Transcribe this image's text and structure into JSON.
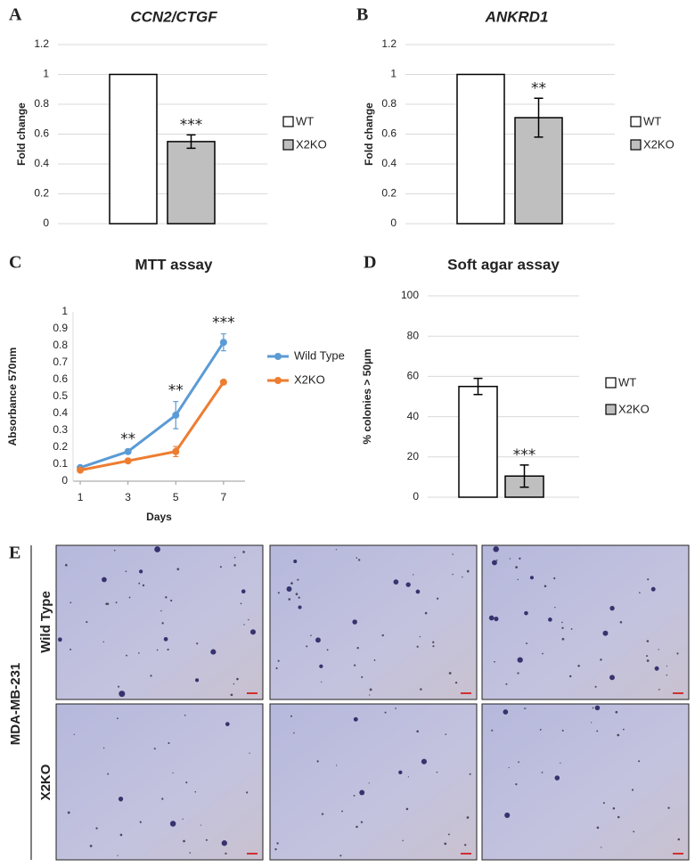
{
  "chart_data": [
    {
      "panel": "A",
      "type": "bar",
      "title": "CCN2/CTGF",
      "y_label": "Fold change",
      "categories": [
        "WT",
        "X2KO"
      ],
      "values": [
        1,
        0.55
      ],
      "errors": [
        null,
        0.045
      ],
      "colors": [
        "#ffffff",
        "#bfbfbf"
      ],
      "annotations": [
        null,
        "***"
      ],
      "ylim": [
        0,
        1.2
      ],
      "yticks": [
        0,
        0.2,
        0.4,
        0.6,
        0.8,
        1,
        1.2
      ],
      "grid": true,
      "title_italic": true
    },
    {
      "panel": "B",
      "type": "bar",
      "title": "ANKRD1",
      "y_label": "Fold change",
      "categories": [
        "WT",
        "X2KO"
      ],
      "values": [
        1,
        0.71
      ],
      "errors": [
        null,
        0.13
      ],
      "colors": [
        "#ffffff",
        "#bfbfbf"
      ],
      "annotations": [
        null,
        "**"
      ],
      "ylim": [
        0,
        1.2
      ],
      "yticks": [
        0,
        0.2,
        0.4,
        0.6,
        0.8,
        1,
        1.2
      ],
      "grid": true,
      "title_italic": true
    },
    {
      "panel": "C",
      "type": "line",
      "title": "MTT assay",
      "x_label": "Days",
      "y_label": "Absorbance 570nm",
      "x": [
        1,
        3,
        5,
        7
      ],
      "xlim": [
        0.7,
        7.9
      ],
      "xticks": [
        1,
        3,
        5,
        7
      ],
      "ylim": [
        0,
        1
      ],
      "yticks": [
        0,
        0.1,
        0.2,
        0.3,
        0.4,
        0.5,
        0.6,
        0.7,
        0.8,
        0.9,
        1
      ],
      "grid": false,
      "series": [
        {
          "name": "Wild Type",
          "color": "#5b9bd5",
          "values": [
            0.08,
            0.175,
            0.39,
            0.82
          ],
          "errors": [
            0.005,
            0.01,
            0.08,
            0.05
          ]
        },
        {
          "name": "X2KO",
          "color": "#ed7d31",
          "values": [
            0.065,
            0.12,
            0.175,
            0.585
          ],
          "errors": [
            0.005,
            0.01,
            0.03,
            0.01
          ]
        }
      ],
      "annotations": [
        null,
        "**",
        "**",
        "***"
      ]
    },
    {
      "panel": "D",
      "type": "bar",
      "title": "Soft agar assay",
      "y_label": "% colonies > 50µm",
      "categories": [
        "WT",
        "X2KO"
      ],
      "values": [
        55,
        10.5
      ],
      "errors": [
        4,
        5.5
      ],
      "colors": [
        "#ffffff",
        "#bfbfbf"
      ],
      "annotations": [
        null,
        "***"
      ],
      "ylim": [
        0,
        100
      ],
      "yticks": [
        0,
        20,
        40,
        60,
        80,
        100
      ],
      "grid": true,
      "title_italic": false
    }
  ],
  "panel_e": {
    "label": "E",
    "cell_line": "MDA-MB-231",
    "rows": [
      "Wild Type",
      "X2KO"
    ]
  }
}
